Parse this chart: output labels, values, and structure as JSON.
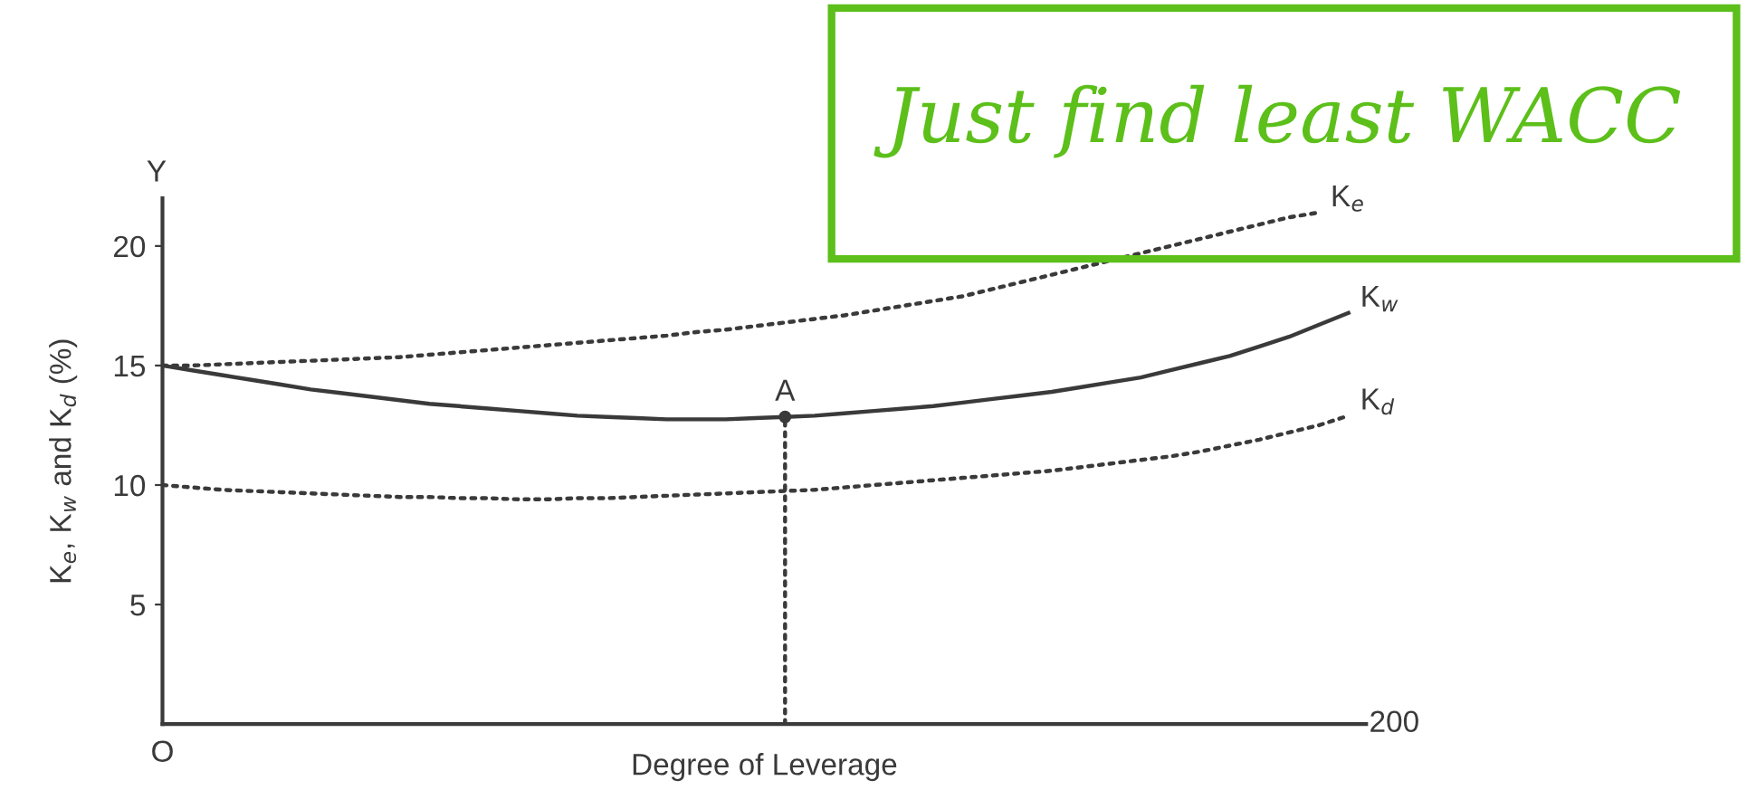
{
  "chart_data": {
    "type": "line",
    "xlabel": "Degree of Leverage",
    "ylabel": "K$_{e}$, K$_{w}$ and K$_{d}$ (%)",
    "categories": [
      null,
      null,
      null,
      null,
      null,
      null,
      null,
      null,
      null,
      null,
      null,
      null,
      null,
      null,
      null,
      null,
      null,
      null,
      null,
      null,
      null,
      null,
      null,
      null,
      null,
      null,
      null,
      null,
      null,
      null,
      null,
      null,
      null,
      null,
      null,
      null,
      null,
      null,
      null,
      null,
      null
    ],
    "ylim": [
      0,
      22
    ],
    "yticks": [
      5,
      10,
      15,
      20
    ],
    "grid": false,
    "legend": false,
    "marker": "none",
    "series": [
      {
        "name": "K$_{e}$",
        "color": "#3a3a3a",
        "line_style": "dotted",
        "values": [
          15.0,
          15.0,
          15.05,
          15.1,
          15.15,
          15.2,
          15.25,
          15.3,
          15.35,
          15.45,
          15.55,
          15.65,
          15.75,
          15.85,
          15.95,
          16.05,
          16.15,
          16.25,
          16.4,
          16.5,
          16.65,
          16.8,
          16.95,
          17.1,
          17.3,
          17.5,
          17.7,
          17.9,
          18.2,
          18.5,
          18.8,
          19.1,
          19.4,
          19.7,
          20.0,
          20.3,
          20.6,
          20.9,
          21.2,
          21.4,
          null
        ]
      },
      {
        "name": "K$_{w}$",
        "color": "#3a3a3a",
        "line_style": "solid",
        "values": [
          15.0,
          14.8,
          14.6,
          14.4,
          14.2,
          14.0,
          13.85,
          13.7,
          13.55,
          13.4,
          13.3,
          13.2,
          13.1,
          13.0,
          12.9,
          12.85,
          12.8,
          12.75,
          12.75,
          12.75,
          12.8,
          12.85,
          12.9,
          13.0,
          13.1,
          13.2,
          13.3,
          13.45,
          13.6,
          13.75,
          13.9,
          14.1,
          14.3,
          14.5,
          14.8,
          15.1,
          15.4,
          15.8,
          16.2,
          16.7,
          17.2
        ]
      },
      {
        "name": "K$_{d}$",
        "color": "#3a3a3a",
        "line_style": "dotted",
        "values": [
          10.0,
          9.9,
          9.8,
          9.75,
          9.7,
          9.65,
          9.6,
          9.55,
          9.5,
          9.5,
          9.45,
          9.45,
          9.4,
          9.4,
          9.45,
          9.45,
          9.5,
          9.55,
          9.6,
          9.65,
          9.7,
          9.75,
          9.8,
          9.9,
          10.0,
          10.1,
          10.2,
          10.3,
          10.4,
          10.5,
          10.6,
          10.75,
          10.9,
          11.05,
          11.2,
          11.4,
          11.65,
          11.9,
          12.2,
          12.5,
          12.9
        ]
      },
      {
        "type": "scatter",
        "marker": "circle",
        "color": "#3a3a3a",
        "line_style": "dotted",
        "values": [
          null,
          null,
          null,
          null,
          null,
          null,
          null,
          null,
          null,
          null,
          null,
          null,
          null,
          null,
          null,
          null,
          null,
          null,
          null,
          null,
          null,
          12.85,
          null,
          null,
          null,
          null,
          null,
          null,
          null,
          null,
          null,
          null,
          null,
          null,
          null,
          null,
          null,
          null,
          null,
          null,
          null
        ],
        "errors": [
          null,
          null,
          null,
          null,
          null,
          null,
          null,
          null,
          null,
          null,
          null,
          null,
          null,
          null,
          null,
          null,
          null,
          null,
          null,
          null,
          null,
          [
            0,
            12.85
          ],
          null,
          null,
          null,
          null,
          null,
          null,
          null,
          null,
          null,
          null,
          null,
          null,
          null,
          null,
          null,
          null,
          null,
          null,
          null
        ]
      }
    ],
    "annotations": [
      "A",
      "Y",
      "O",
      "200",
      "Just find least WACC"
    ]
  }
}
